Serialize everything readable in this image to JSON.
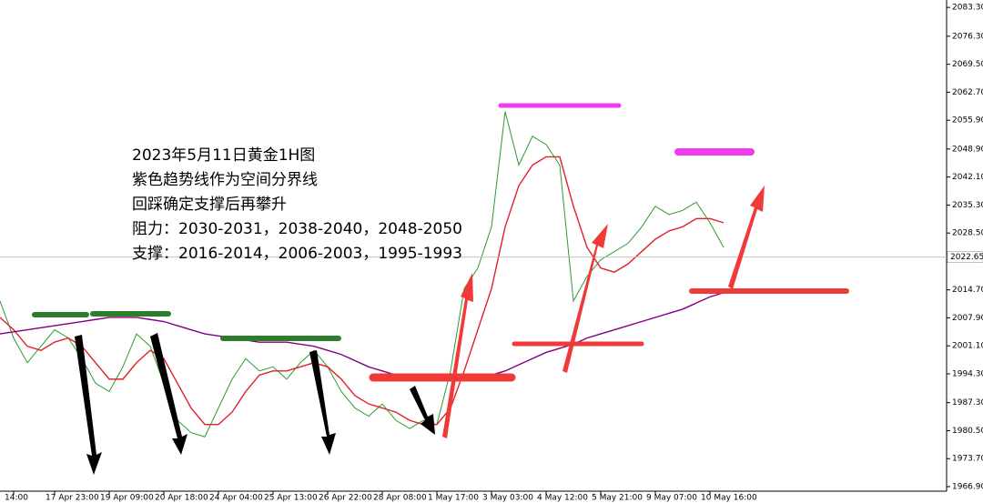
{
  "chart_data": {
    "type": "line",
    "annotations": [
      "2023年5月11日黄金1H图",
      "紫色趋势线作为空间分界线",
      "回踩确定支撑后再攀升",
      "阻力：2030-2031，2038-2040，2048-2050",
      "支撑：2016-2014，2006-2003，1995-1993"
    ],
    "categories": [
      null,
      "14:00",
      null,
      null,
      "17 Apr 23:00",
      null,
      null,
      null,
      "19 Apr 09:00",
      null,
      null,
      null,
      "20 Apr 18:00",
      null,
      null,
      null,
      "24 Apr 04:00",
      null,
      null,
      null,
      "25 Apr 13:00",
      null,
      null,
      null,
      "26 Apr 22:00",
      null,
      null,
      null,
      "28 Apr 08:00",
      null,
      null,
      null,
      "1 May 17:00",
      null,
      null,
      null,
      "3 May 03:00",
      null,
      null,
      null,
      "4 May 12:00",
      null,
      null,
      null,
      "5 May 21:00",
      null,
      null,
      null,
      "9 May 07:00",
      null,
      null,
      null,
      "10 May 16:00",
      null
    ],
    "series": [
      {
        "color": "#2e9a2e",
        "values": [
          2012,
          2003,
          1997,
          2001,
          2005,
          2003,
          1998,
          1992,
          1990,
          1996,
          2004,
          2001,
          1992,
          1983,
          1980,
          1979,
          1986,
          1993,
          1998,
          1995,
          1996,
          1993,
          1997,
          2000,
          1996,
          1990,
          1986,
          1984,
          1987,
          1983,
          1981,
          1983,
          1982,
          1995,
          2015,
          2020,
          2030,
          2058,
          2045,
          2052,
          2050,
          2045,
          2012,
          2018,
          2022,
          2024,
          2026,
          2030,
          2035,
          2033,
          2034,
          2036,
          2031,
          2025
        ]
      },
      {
        "color": "#e0202a",
        "values": [
          2008,
          2005,
          2001,
          2000,
          2002,
          2003,
          2001,
          1997,
          1993,
          1993,
          1997,
          2000,
          1998,
          1992,
          1986,
          1982,
          1982,
          1985,
          1990,
          1994,
          1995,
          1995,
          1996,
          1997,
          1996,
          1993,
          1989,
          1987,
          1986,
          1985,
          1983,
          1982,
          1982,
          1986,
          1995,
          2005,
          2015,
          2030,
          2040,
          2045,
          2047,
          2047,
          2035,
          2025,
          2020,
          2019,
          2021,
          2024,
          2027,
          2029,
          2030,
          2032,
          2032,
          2031
        ]
      },
      {
        "color": "#800080",
        "values": [
          2004,
          2004.5,
          2005,
          2005.5,
          2006,
          2006.5,
          2007,
          2007.5,
          2008,
          2008,
          2008,
          2007.5,
          2007,
          2006,
          2005,
          2004,
          2003.5,
          2003,
          2002.5,
          2002,
          2002,
          2002,
          2001.5,
          2001,
          2000,
          1999,
          1997.5,
          1996,
          1995,
          1994,
          1993.5,
          1993,
          1993,
          1993,
          1993,
          1993.5,
          1994,
          1995,
          1996.5,
          1998,
          1999.5,
          2000.5,
          2001.5,
          2003,
          2004,
          2005,
          2006,
          2007,
          2008,
          2009,
          2010,
          2011.5,
          2013,
          2014
        ]
      }
    ],
    "current_price": {
      "value": 2022.65,
      "label": "2022.65"
    },
    "ylim": [
      1965.8,
      2085.1
    ],
    "yticks": [
      {
        "value": 2083.3,
        "label": "2083.30"
      },
      {
        "value": 2076.3,
        "label": "2076.30"
      },
      {
        "value": 2069.5,
        "label": "2069.50"
      },
      {
        "value": 2062.7,
        "label": "2062.70"
      },
      {
        "value": 2055.9,
        "label": "2055.90"
      },
      {
        "value": 2048.9,
        "label": "2048.90"
      },
      {
        "value": 2042.1,
        "label": "2042.10"
      },
      {
        "value": 2035.3,
        "label": "2035.30"
      },
      {
        "value": 2028.5,
        "label": "2028.50"
      },
      {
        "value": 2014.7,
        "label": "2014.70"
      },
      {
        "value": 2007.9,
        "label": "2007.90"
      },
      {
        "value": 2001.1,
        "label": "2001.10"
      },
      {
        "value": 1994.3,
        "label": "1994.30"
      },
      {
        "value": 1987.3,
        "label": "1987.30"
      },
      {
        "value": 1980.5,
        "label": "1980.50"
      },
      {
        "value": 1973.7,
        "label": "1973.70"
      },
      {
        "value": 1966.9,
        "label": "1966.90"
      }
    ],
    "grid": false
  }
}
